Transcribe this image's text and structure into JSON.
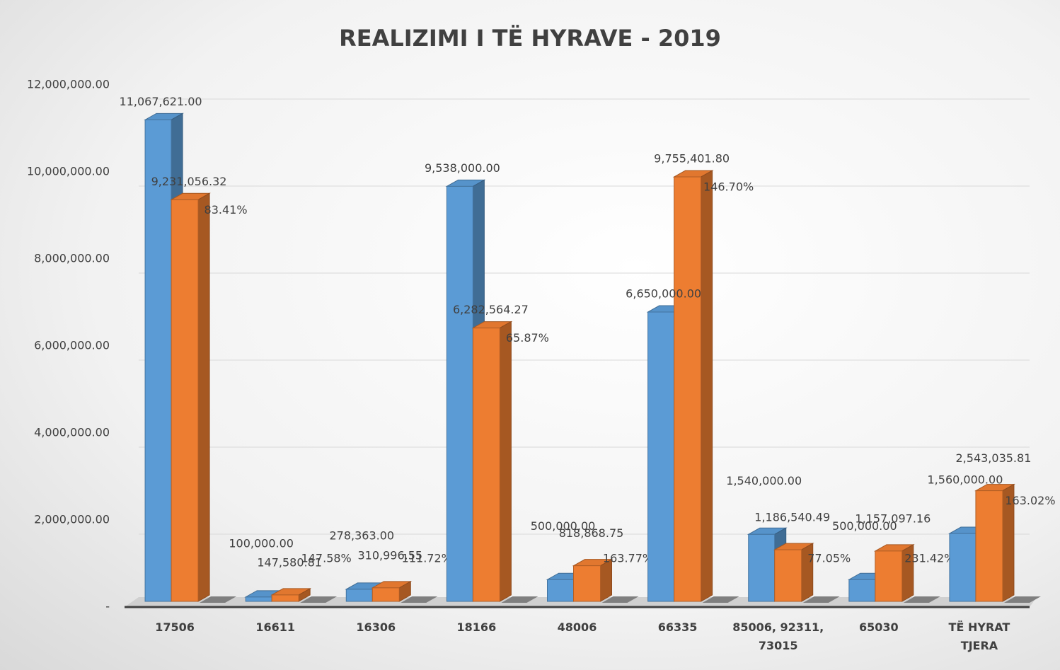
{
  "chart_data": {
    "type": "bar3d",
    "title": "REALIZIMI I TË HYRAVE - 2019",
    "categories": [
      "17506",
      "16611",
      "16306",
      "18166",
      "48006",
      "66335",
      "85006, 92311, 73015",
      "65030",
      "TË HYRAT TJERA"
    ],
    "series": [
      {
        "color": "#5b9bd5",
        "values": [
          11067621,
          100000,
          278363,
          9538000,
          500000,
          6650000,
          1540000,
          500000,
          1560000
        ],
        "value_labels": [
          "11,067,621.00",
          "100,000.00",
          "278,363.00",
          "9,538,000.00",
          "500,000.00",
          "6,650,000.00",
          "1,540,000.00",
          "500,000.00",
          "1,560,000.00"
        ]
      },
      {
        "color": "#ed7d31",
        "values": [
          9231056.32,
          147580.81,
          310996.55,
          6282564.27,
          818868.75,
          9755401.8,
          1186540.49,
          1157097.16,
          2543035.81
        ],
        "value_labels": [
          "9,231,056.32",
          "147,580.81",
          "310,996.55",
          "6,282,564.27",
          "818,868.75",
          "9,755,401.80",
          "1,186,540.49",
          "1,157,097.16",
          "2,543,035.81"
        ]
      },
      {
        "color": "#7f7f7f",
        "values": [
          83.41,
          147.58,
          111.72,
          65.87,
          163.77,
          146.7,
          77.05,
          231.42,
          163.02
        ],
        "value_labels": [
          "83.41%",
          "147.58%",
          "111.72%",
          "65.87%",
          "163.77%",
          "146.70%",
          "77.05%",
          "231.42%",
          "163.02%"
        ]
      }
    ],
    "ylim": [
      0,
      12000000
    ],
    "yticks": [
      {
        "value": 0,
        "label": "-"
      },
      {
        "value": 2000000,
        "label": "2,000,000.00"
      },
      {
        "value": 4000000,
        "label": "4,000,000.00"
      },
      {
        "value": 6000000,
        "label": "6,000,000.00"
      },
      {
        "value": 8000000,
        "label": "8,000,000.00"
      },
      {
        "value": 10000000,
        "label": "10,000,000.00"
      },
      {
        "value": 12000000,
        "label": "12,000,000.00"
      }
    ],
    "grid": true
  }
}
